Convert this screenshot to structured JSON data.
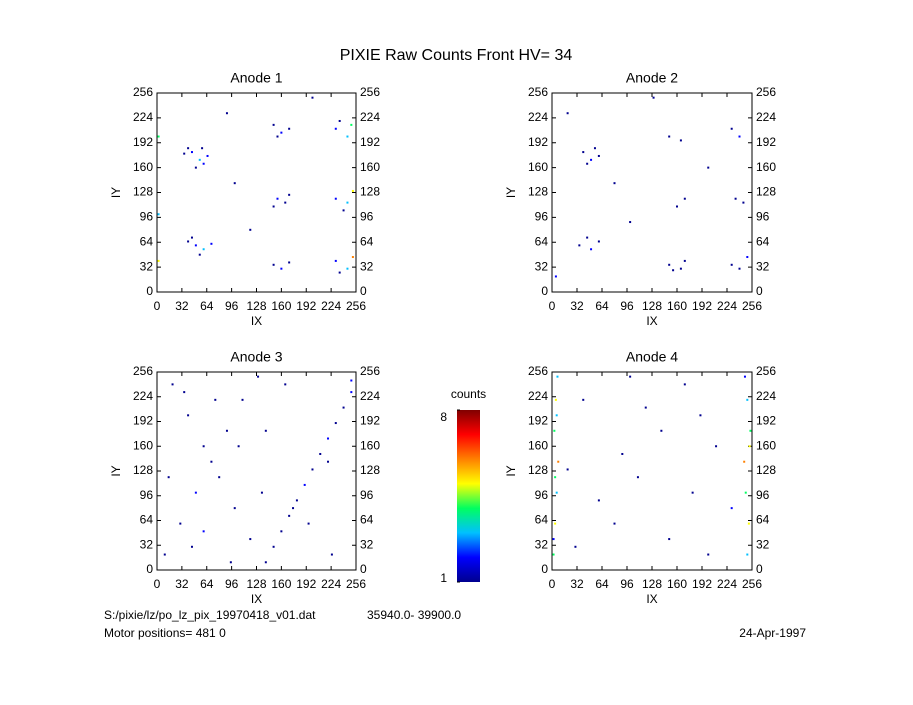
{
  "title": "PIXIE Raw Counts Front HV= 34",
  "footer": {
    "file": "S:/pixie/lz/po_lz_pix_19970418_v01.dat",
    "range": "35940.0- 39900.0",
    "motor": "Motor positions= 481 0",
    "date": "24-Apr-1997"
  },
  "colorbar": {
    "label": "counts",
    "lim": [
      1,
      8
    ],
    "ticks": [
      1,
      8
    ],
    "colors": [
      "#00008f",
      "#0000ff",
      "#00c0ff",
      "#00ff60",
      "#ffff00",
      "#ff8000",
      "#ff0000",
      "#800000"
    ]
  },
  "chart_data": [
    {
      "type": "scatter",
      "title": "Anode 1",
      "xlabel": "IX",
      "ylabel": "IY",
      "xlim": [
        0,
        256
      ],
      "ylim": [
        0,
        256
      ],
      "xticks": [
        0,
        32,
        64,
        96,
        128,
        160,
        192,
        224,
        256
      ],
      "yticks": [
        0,
        32,
        64,
        96,
        128,
        160,
        192,
        224,
        256
      ],
      "x": [
        45,
        55,
        60,
        40,
        50,
        65,
        35,
        58,
        50,
        60,
        45,
        70,
        40,
        55,
        150,
        160,
        170,
        155,
        155,
        165,
        170,
        150,
        150,
        160,
        170,
        230,
        245,
        250,
        235,
        230,
        245,
        252,
        240,
        230,
        245,
        252,
        235,
        2,
        2,
        2,
        100,
        200,
        120,
        90
      ],
      "y": [
        180,
        170,
        165,
        185,
        160,
        175,
        178,
        185,
        60,
        55,
        70,
        62,
        65,
        48,
        215,
        205,
        210,
        200,
        120,
        115,
        125,
        110,
        35,
        30,
        38,
        210,
        200,
        215,
        220,
        120,
        115,
        130,
        105,
        40,
        30,
        45,
        25,
        200,
        100,
        40,
        140,
        250,
        80,
        230
      ],
      "values": [
        2,
        3,
        2,
        1,
        1,
        2,
        1,
        1,
        2,
        3,
        1,
        2,
        1,
        1,
        1,
        2,
        1,
        1,
        2,
        1,
        1,
        1,
        1,
        2,
        1,
        2,
        3,
        4,
        1,
        2,
        3,
        5,
        1,
        2,
        3,
        6,
        1,
        4,
        3,
        5,
        1,
        1,
        1,
        1
      ]
    },
    {
      "type": "scatter",
      "title": "Anode 2",
      "xlabel": "IX",
      "ylabel": "IY",
      "xlim": [
        0,
        256
      ],
      "ylim": [
        0,
        256
      ],
      "xticks": [
        0,
        32,
        64,
        96,
        128,
        160,
        192,
        224,
        256
      ],
      "yticks": [
        0,
        32,
        64,
        96,
        128,
        160,
        192,
        224,
        256
      ],
      "x": [
        40,
        50,
        60,
        45,
        55,
        35,
        50,
        60,
        45,
        150,
        165,
        160,
        170,
        150,
        165,
        155,
        170,
        230,
        240,
        235,
        245,
        230,
        240,
        250,
        100,
        20,
        200,
        80,
        130,
        5
      ],
      "y": [
        180,
        170,
        175,
        165,
        185,
        60,
        55,
        65,
        70,
        200,
        195,
        110,
        120,
        35,
        30,
        28,
        40,
        210,
        200,
        120,
        115,
        35,
        30,
        45,
        90,
        230,
        160,
        140,
        250,
        20
      ],
      "values": [
        1,
        2,
        1,
        1,
        1,
        1,
        2,
        1,
        1,
        1,
        1,
        1,
        1,
        1,
        1,
        1,
        1,
        1,
        2,
        1,
        1,
        1,
        1,
        2,
        1,
        1,
        1,
        1,
        1,
        2
      ]
    },
    {
      "type": "scatter",
      "title": "Anode 3",
      "xlabel": "IX",
      "ylabel": "IY",
      "xlim": [
        0,
        256
      ],
      "ylim": [
        0,
        256
      ],
      "xticks": [
        0,
        32,
        64,
        96,
        128,
        160,
        192,
        224,
        256
      ],
      "yticks": [
        0,
        32,
        64,
        96,
        128,
        160,
        192,
        224,
        256
      ],
      "x": [
        10,
        30,
        50,
        70,
        90,
        110,
        130,
        150,
        170,
        190,
        210,
        230,
        250,
        20,
        40,
        60,
        80,
        100,
        120,
        140,
        160,
        180,
        200,
        220,
        240,
        15,
        45,
        75,
        105,
        135,
        165,
        195,
        225,
        250,
        60,
        140,
        220,
        35,
        95,
        175
      ],
      "y": [
        20,
        60,
        100,
        140,
        180,
        220,
        250,
        30,
        70,
        110,
        150,
        190,
        230,
        240,
        200,
        160,
        120,
        80,
        40,
        10,
        50,
        90,
        130,
        170,
        210,
        120,
        30,
        220,
        160,
        100,
        240,
        60,
        20,
        245,
        50,
        180,
        140,
        230,
        10,
        80
      ],
      "values": [
        1,
        1,
        2,
        1,
        1,
        1,
        1,
        1,
        1,
        2,
        1,
        1,
        2,
        1,
        1,
        1,
        1,
        1,
        1,
        1,
        1,
        1,
        1,
        2,
        1,
        1,
        1,
        1,
        1,
        1,
        1,
        1,
        1,
        2,
        2,
        1,
        1,
        1,
        1,
        1
      ]
    },
    {
      "type": "scatter",
      "title": "Anode 4",
      "xlabel": "IX",
      "ylabel": "IY",
      "xlim": [
        0,
        256
      ],
      "ylim": [
        0,
        256
      ],
      "xticks": [
        0,
        32,
        64,
        96,
        128,
        160,
        192,
        224,
        256
      ],
      "yticks": [
        0,
        32,
        64,
        96,
        128,
        160,
        192,
        224,
        256
      ],
      "x": [
        2,
        4,
        6,
        8,
        3,
        5,
        7,
        2,
        4,
        6,
        250,
        252,
        248,
        246,
        254,
        250,
        247,
        253,
        30,
        60,
        90,
        120,
        150,
        180,
        210,
        40,
        80,
        110,
        140,
        170,
        200,
        230,
        20,
        100,
        190
      ],
      "y": [
        20,
        60,
        100,
        140,
        180,
        220,
        250,
        40,
        120,
        200,
        20,
        60,
        100,
        140,
        180,
        220,
        250,
        160,
        30,
        90,
        150,
        210,
        40,
        100,
        160,
        220,
        60,
        120,
        180,
        240,
        20,
        80,
        130,
        250,
        200
      ],
      "values": [
        4,
        5,
        3,
        6,
        4,
        5,
        3,
        2,
        4,
        3,
        3,
        5,
        4,
        6,
        4,
        3,
        2,
        5,
        1,
        1,
        1,
        1,
        1,
        1,
        1,
        1,
        1,
        1,
        1,
        1,
        1,
        2,
        1,
        1,
        1
      ]
    }
  ]
}
